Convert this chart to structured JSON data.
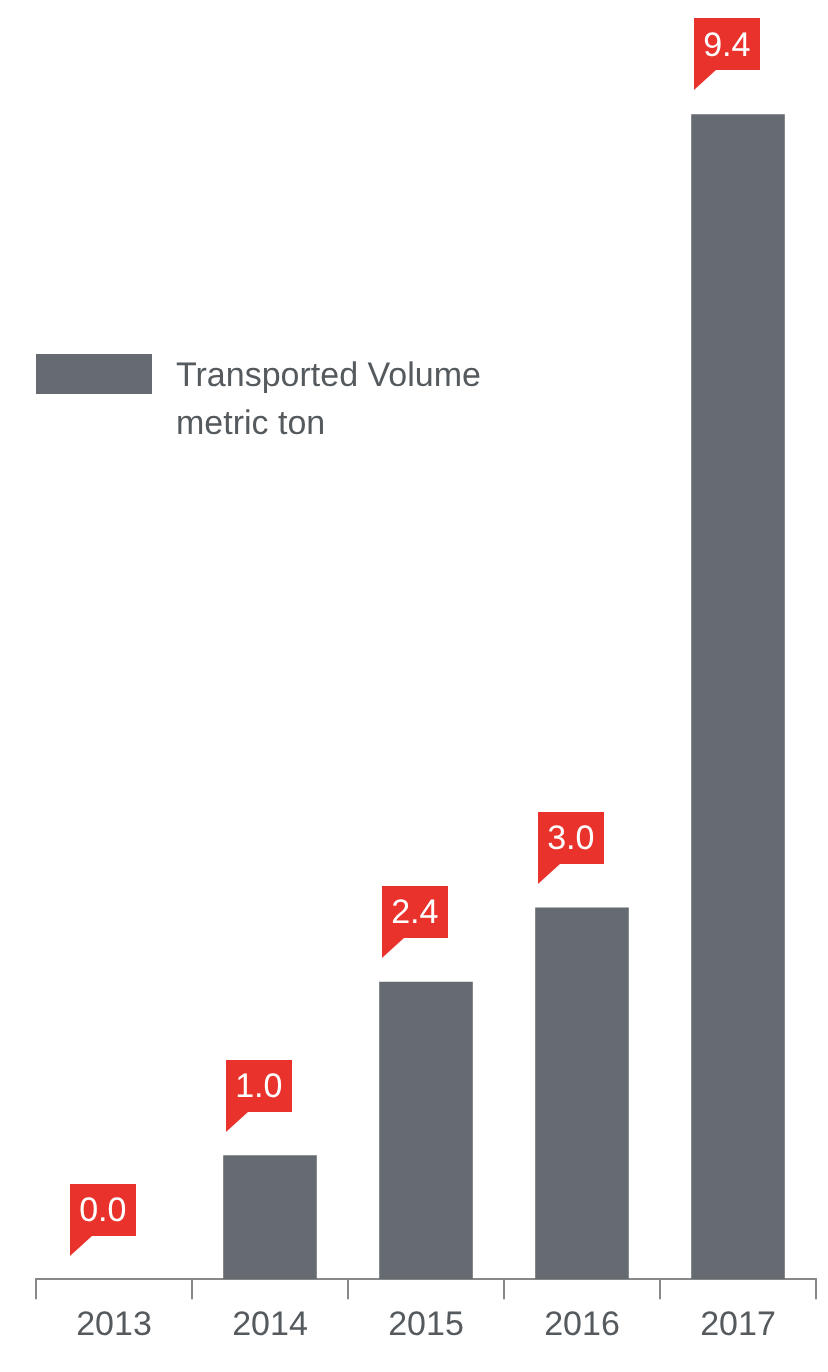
{
  "chart_data": {
    "type": "bar",
    "categories": [
      "2013",
      "2014",
      "2015",
      "2016",
      "2017"
    ],
    "series": [
      {
        "name": "Transported Volume metric ton",
        "color": "#656b70",
        "values": [
          0.0,
          1.0,
          2.4,
          3.0,
          9.4
        ],
        "value_labels": [
          "0.0",
          "1.0",
          "2.4",
          "3.0",
          "9.4"
        ]
      }
    ],
    "legend": "top left",
    "grid": false
  }
}
